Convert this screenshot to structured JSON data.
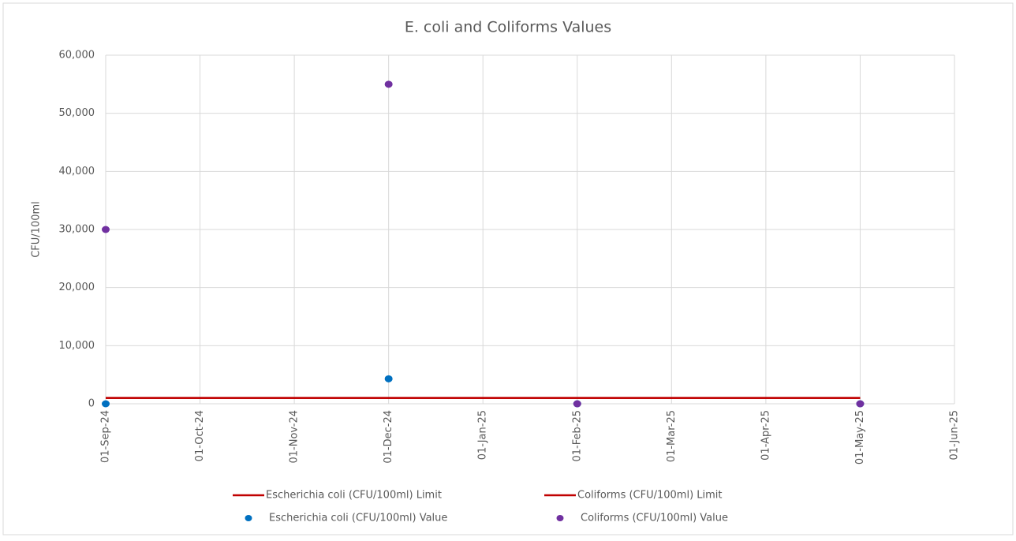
{
  "chart_data": {
    "type": "scatter-line",
    "title": "E. coli and Coliforms Values",
    "y_label": "CFU/100ml",
    "categories": [
      "01-Sep-24",
      "01-Oct-24",
      "01-Nov-24",
      "01-Dec-24",
      "01-Jan-25",
      "01-Feb-25",
      "01-Mar-25",
      "01-Apr-25",
      "01-May-25",
      "01-Jun-25"
    ],
    "ylim": [
      0,
      60000
    ],
    "yticks": [
      0,
      {
        "value": 10000,
        "label": "10,000"
      },
      {
        "value": 20000,
        "label": "20,000"
      },
      {
        "value": 30000,
        "label": "30,000"
      },
      {
        "value": 40000,
        "label": "40,000"
      },
      {
        "value": 50000,
        "label": "50,000"
      },
      {
        "value": 60000,
        "label": "60,000"
      }
    ],
    "grid": true,
    "legend": "bottom",
    "series": [
      {
        "name": "Escherichia coli (CFU/100ml) Limit",
        "color": "#c00000",
        "kind": "line",
        "x": [
          "01-Sep-24",
          "01-Dec-24",
          "01-Feb-25",
          "01-May-25"
        ],
        "values": [
          1000,
          1000,
          1000,
          1000
        ]
      },
      {
        "name": "Coliforms (CFU/100ml) Limit",
        "color": "#c00000",
        "kind": "line",
        "x": [
          "01-Sep-24",
          "01-Dec-24",
          "01-Feb-25",
          "01-May-25"
        ],
        "values": [
          1000,
          1000,
          1000,
          1000
        ]
      },
      {
        "name": "Escherichia coli (CFU/100ml) Value",
        "color": "#0070c0",
        "kind": "marker",
        "x": [
          "01-Sep-24",
          "01-Dec-24",
          "01-Feb-25",
          "01-May-25"
        ],
        "values": [
          0,
          4300,
          0,
          0
        ]
      },
      {
        "name": "Coliforms (CFU/100ml) Value",
        "color": "#7030a0",
        "kind": "marker",
        "x": [
          "01-Sep-24",
          "01-Dec-24",
          "01-Feb-25",
          "01-May-25"
        ],
        "values": [
          30000,
          55000,
          0,
          0
        ]
      }
    ]
  }
}
